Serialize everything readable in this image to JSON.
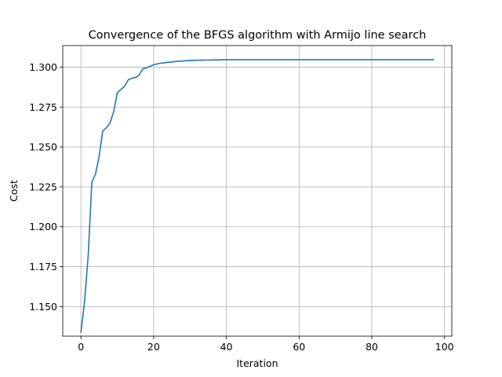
{
  "chart_data": {
    "type": "line",
    "title": "Convergence of the BFGS algorithm with Armijo line search",
    "xlabel": "Iteration",
    "ylabel": "Cost",
    "xlim": [
      -5,
      102
    ],
    "ylim": [
      1.1315,
      1.3135
    ],
    "xticks": [
      0,
      20,
      40,
      60,
      80,
      100
    ],
    "yticks": [
      1.15,
      1.175,
      1.2,
      1.225,
      1.25,
      1.275,
      1.3
    ],
    "xtick_labels": [
      "0",
      "20",
      "40",
      "60",
      "80",
      "100"
    ],
    "ytick_labels": [
      "1.150",
      "1.175",
      "1.200",
      "1.225",
      "1.250",
      "1.275",
      "1.300"
    ],
    "grid": true,
    "color": "#1f77b4",
    "series": [
      {
        "x": [
          0,
          1,
          2,
          3,
          4,
          5,
          6,
          7,
          8,
          9,
          10,
          11,
          12,
          13,
          14,
          15,
          16,
          17,
          18,
          19,
          20,
          21,
          22,
          23,
          24,
          25,
          26,
          27,
          28,
          29,
          30,
          31,
          32,
          33,
          34,
          35,
          36,
          37,
          38,
          39,
          40,
          42,
          45,
          50,
          55,
          60,
          65,
          70,
          75,
          80,
          85,
          90,
          95,
          97
        ],
        "y": [
          1.134,
          1.153,
          1.182,
          1.228,
          1.233,
          1.244,
          1.26,
          1.262,
          1.265,
          1.272,
          1.284,
          1.286,
          1.288,
          1.292,
          1.293,
          1.2935,
          1.295,
          1.299,
          1.2995,
          1.3005,
          1.3015,
          1.302,
          1.3025,
          1.3027,
          1.303,
          1.3032,
          1.3035,
          1.3037,
          1.3039,
          1.304,
          1.3041,
          1.3042,
          1.3043,
          1.3043,
          1.3044,
          1.3044,
          1.3045,
          1.3045,
          1.3045,
          1.3046,
          1.3046,
          1.3046,
          1.3046,
          1.3046,
          1.3046,
          1.3046,
          1.3046,
          1.3046,
          1.3046,
          1.3046,
          1.3046,
          1.3046,
          1.3046,
          1.3046
        ]
      }
    ]
  }
}
